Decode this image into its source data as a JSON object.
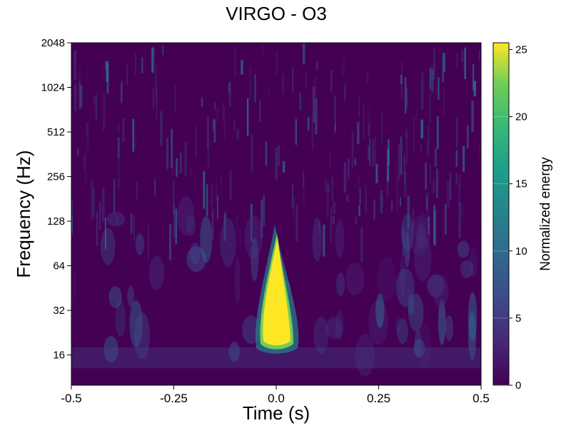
{
  "chart_data": {
    "type": "heatmap",
    "title": "VIRGO - O3",
    "xlabel": "Time (s)",
    "ylabel": "Frequency (Hz)",
    "xlim": [
      -0.5,
      0.5
    ],
    "ylim": [
      10,
      2048
    ],
    "yscale": "log2",
    "x_ticks": [
      -0.5,
      -0.25,
      0.0,
      0.25,
      0.5
    ],
    "x_tick_labels": [
      "-0.5",
      "-0.25",
      "0.0",
      "0.25",
      "0.5"
    ],
    "y_ticks": [
      16,
      32,
      64,
      128,
      256,
      512,
      1024,
      2048
    ],
    "y_tick_labels": [
      "16",
      "32",
      "64",
      "128",
      "256",
      "512",
      "1024",
      "2048"
    ],
    "colorbar": {
      "label": "Normalized energy",
      "range": [
        0,
        25.5
      ],
      "colormap": "viridis",
      "ticks": [
        0,
        5,
        10,
        15,
        20,
        25
      ],
      "tick_labels": [
        "0",
        "5",
        "10",
        "15",
        "20",
        "25"
      ]
    },
    "features": [
      {
        "t_center": 0.0,
        "f_low": 19,
        "f_high": 100,
        "peak_energy": 25.5
      },
      {
        "t_center": 0.0,
        "f_low": 18,
        "f_high": 24,
        "peak_energy": 25.5
      }
    ],
    "grid": false
  }
}
